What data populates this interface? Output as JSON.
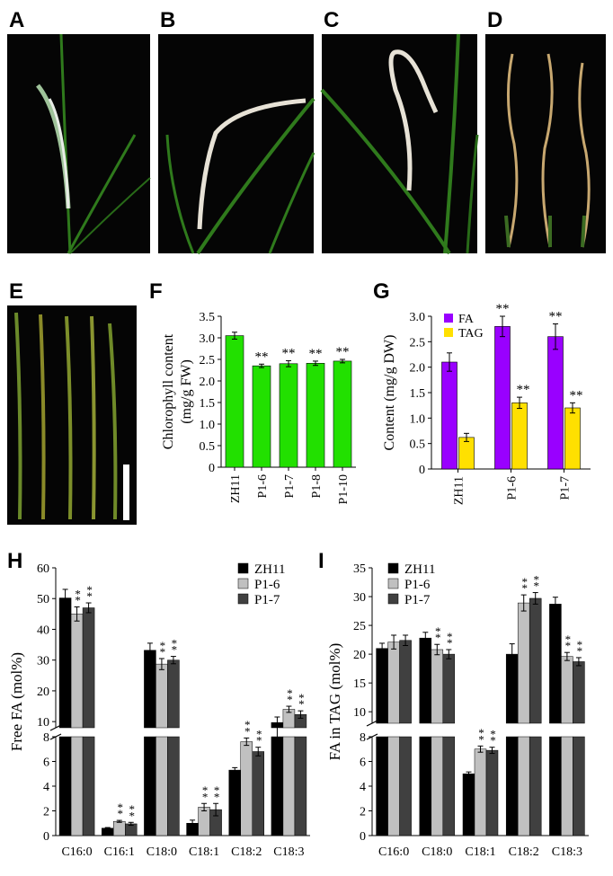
{
  "figure": {
    "panel_labels": [
      "A",
      "B",
      "C",
      "D",
      "E",
      "F",
      "G",
      "H",
      "I"
    ],
    "significance_marker": "**",
    "colors": {
      "photo_background": "#050505",
      "leaf_green": "#2f7a1c",
      "leaf_pale": "#e7e2d6",
      "leaf_straw": "#c8a870",
      "scale_bar": "#ffffff",
      "chlorophyll_bar": "#22e000",
      "fa_bar": "#9900ff",
      "tag_bar": "#ffe000",
      "zh11_bar": "#000000",
      "p16_bar": "#c0c0c0",
      "p17_bar": "#404040"
    }
  },
  "photos": {
    "A": {
      "icon": "curled-leaf-photo"
    },
    "B": {
      "icon": "curled-leaf-photo"
    },
    "C": {
      "icon": "curled-leaf-photo"
    },
    "D": {
      "icon": "wilted-leaves-photo"
    },
    "E": {
      "icon": "yellowing-leaves-photo"
    }
  },
  "chart_data": [
    {
      "panel": "F",
      "type": "bar",
      "ylabel_lines": [
        "Chlorophyll content",
        "(mg/g FW)"
      ],
      "ylim": [
        0,
        3.5
      ],
      "yticks": [
        "0",
        "0.5",
        "1.0",
        "1.5",
        "2.0",
        "2.5",
        "3.0",
        "3.5"
      ],
      "categories": [
        "ZH11",
        "P1-6",
        "P1-7",
        "P1-8",
        "P1-10"
      ],
      "values": [
        3.05,
        2.35,
        2.4,
        2.41,
        2.46
      ],
      "errors": [
        0.08,
        0.04,
        0.07,
        0.05,
        0.04
      ],
      "significance": [
        "",
        "**",
        "**",
        "**",
        "**"
      ],
      "grid": false
    },
    {
      "panel": "G",
      "type": "bar",
      "ylabel": "Content (mg/g DW)",
      "ylim": [
        0,
        3.0
      ],
      "yticks": [
        "0",
        "0.5",
        "1.0",
        "1.5",
        "2.0",
        "2.5",
        "3.0"
      ],
      "categories": [
        "ZH11",
        "P1-6",
        "P1-7"
      ],
      "legend_position": "top-left",
      "series": [
        {
          "name": "FA",
          "values": [
            2.1,
            2.8,
            2.6
          ],
          "errors": [
            0.18,
            0.2,
            0.25
          ],
          "significance": [
            "",
            "**",
            "**"
          ]
        },
        {
          "name": "TAG",
          "values": [
            0.62,
            1.3,
            1.2
          ],
          "errors": [
            0.08,
            0.11,
            0.1
          ],
          "significance": [
            "",
            "**",
            "**"
          ]
        }
      ],
      "grid": false
    },
    {
      "panel": "H",
      "type": "bar",
      "ylabel": "Free FA (mol%)",
      "axis_break": {
        "lower": [
          0,
          8
        ],
        "upper": [
          8,
          60
        ]
      },
      "yticks_lower": [
        "0",
        "2",
        "4",
        "6",
        "8"
      ],
      "yticks_upper": [
        "10",
        "20",
        "30",
        "40",
        "50",
        "60"
      ],
      "categories": [
        "C16:0",
        "C16:1",
        "C18:0",
        "C18:1",
        "C18:2",
        "C18:3"
      ],
      "legend_position": "top-right",
      "series": [
        {
          "name": "ZH11",
          "values": [
            50.2,
            0.6,
            33.2,
            1.0,
            5.3,
            9.7
          ],
          "errors": [
            2.8,
            0.05,
            2.3,
            0.25,
            0.2,
            1.8
          ],
          "significance": [
            "",
            "",
            "",
            "",
            "",
            ""
          ]
        },
        {
          "name": "P1-6",
          "values": [
            45.0,
            1.15,
            28.7,
            2.3,
            7.6,
            14.0
          ],
          "errors": [
            2.3,
            0.08,
            1.8,
            0.3,
            0.3,
            1.0
          ],
          "significance": [
            "**",
            "**",
            "**",
            "**",
            "**",
            "**"
          ]
        },
        {
          "name": "P1-7",
          "values": [
            47.0,
            0.95,
            30.0,
            2.1,
            6.8,
            12.3
          ],
          "errors": [
            1.6,
            0.12,
            1.2,
            0.5,
            0.35,
            1.2
          ],
          "significance": [
            "**",
            "**",
            "**",
            "**",
            "**",
            "**"
          ]
        }
      ],
      "grid": false
    },
    {
      "panel": "I",
      "type": "bar",
      "ylabel": "FA in TAG  (mol%)",
      "axis_break": {
        "lower": [
          0,
          8
        ],
        "upper": [
          8,
          35
        ]
      },
      "yticks_lower": [
        "0",
        "2",
        "4",
        "6",
        "8"
      ],
      "yticks_upper": [
        "10",
        "15",
        "20",
        "25",
        "30",
        "35"
      ],
      "categories": [
        "C16:0",
        "C18:0",
        "C18:1",
        "C18:2",
        "C18:3"
      ],
      "legend_position": "top-left",
      "series": [
        {
          "name": "ZH11",
          "values": [
            21.0,
            22.8,
            5.0,
            20.0,
            28.7
          ],
          "errors": [
            0.9,
            1.0,
            0.15,
            1.8,
            1.2
          ],
          "significance": [
            "",
            "",
            "",
            "",
            ""
          ]
        },
        {
          "name": "P1-6",
          "values": [
            22.1,
            20.8,
            7.0,
            28.9,
            19.6
          ],
          "errors": [
            1.2,
            0.9,
            0.25,
            1.4,
            0.7
          ],
          "significance": [
            "",
            "**",
            "**",
            "**",
            "**"
          ]
        },
        {
          "name": "P1-7",
          "values": [
            22.4,
            20.0,
            6.9,
            29.7,
            18.7
          ],
          "errors": [
            0.9,
            0.8,
            0.25,
            1.0,
            0.7
          ],
          "significance": [
            "",
            "**",
            "**",
            "**",
            "**"
          ]
        }
      ],
      "grid": false
    }
  ]
}
